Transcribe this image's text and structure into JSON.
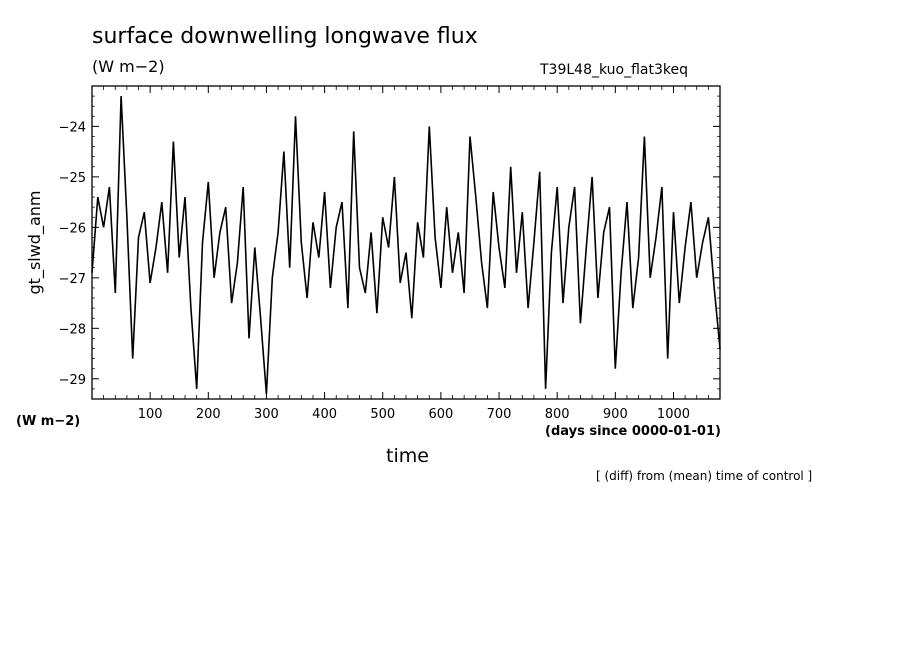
{
  "title": "surface downwelling longwave flux",
  "units_label": "(W m−2)",
  "run_label": "T39L48_kuo_flat3keq",
  "bottom_units_label": "(W m−2)",
  "x_units_label": "(days since 0000-01-01)",
  "xlabel": "time",
  "ylabel": "gt_slwd_anm",
  "note": "[ (diff) from (mean) time of control ]",
  "chart_data": {
    "type": "line",
    "title": "surface downwelling longwave flux",
    "xlabel": "time",
    "ylabel": "gt_slwd_anm",
    "xlim": [
      0,
      1080
    ],
    "ylim": [
      -29.4,
      -23.2
    ],
    "xticks": [
      100,
      200,
      300,
      400,
      500,
      600,
      700,
      800,
      900,
      1000
    ],
    "yticks": [
      -24,
      -25,
      -26,
      -27,
      -28,
      -29
    ],
    "grid": false,
    "series": [
      {
        "x": [
          0,
          10,
          20,
          30,
          40,
          50,
          60,
          70,
          80,
          90,
          100,
          110,
          120,
          130,
          140,
          150,
          160,
          170,
          180,
          190,
          200,
          210,
          220,
          230,
          240,
          250,
          260,
          270,
          280,
          290,
          300,
          310,
          320,
          330,
          340,
          350,
          360,
          370,
          380,
          390,
          400,
          410,
          420,
          430,
          440,
          450,
          460,
          470,
          480,
          490,
          500,
          510,
          520,
          530,
          540,
          550,
          560,
          570,
          580,
          590,
          600,
          610,
          620,
          630,
          640,
          650,
          660,
          670,
          680,
          690,
          700,
          710,
          720,
          730,
          740,
          750,
          760,
          770,
          780,
          790,
          800,
          810,
          820,
          830,
          840,
          850,
          860,
          870,
          880,
          890,
          900,
          910,
          920,
          930,
          940,
          950,
          960,
          970,
          980,
          990,
          1000,
          1010,
          1020,
          1030,
          1040,
          1050,
          1060,
          1070,
          1080
        ],
        "y": [
          -26.9,
          -25.4,
          -26.0,
          -25.2,
          -27.3,
          -23.4,
          -25.8,
          -28.6,
          -26.2,
          -25.7,
          -27.1,
          -26.4,
          -25.5,
          -26.9,
          -24.3,
          -26.6,
          -25.4,
          -27.6,
          -29.2,
          -26.3,
          -25.1,
          -27.0,
          -26.1,
          -25.6,
          -27.5,
          -26.7,
          -25.2,
          -28.2,
          -26.4,
          -27.8,
          -29.3,
          -27.0,
          -26.1,
          -24.5,
          -26.8,
          -23.8,
          -26.3,
          -27.4,
          -25.9,
          -26.6,
          -25.3,
          -27.2,
          -26.0,
          -25.5,
          -27.6,
          -24.1,
          -26.8,
          -27.3,
          -26.1,
          -27.7,
          -25.8,
          -26.4,
          -25.0,
          -27.1,
          -26.5,
          -27.8,
          -25.9,
          -26.6,
          -24.0,
          -26.2,
          -27.2,
          -25.6,
          -26.9,
          -26.1,
          -27.3,
          -24.2,
          -25.4,
          -26.7,
          -27.6,
          -25.3,
          -26.4,
          -27.2,
          -24.8,
          -26.9,
          -25.7,
          -27.6,
          -26.3,
          -24.9,
          -29.2,
          -26.5,
          -25.2,
          -27.5,
          -26.0,
          -25.2,
          -27.9,
          -26.4,
          -25.0,
          -27.4,
          -26.1,
          -25.6,
          -28.8,
          -26.9,
          -25.5,
          -27.6,
          -26.6,
          -24.2,
          -27.0,
          -26.2,
          -25.2,
          -28.6,
          -25.7,
          -27.5,
          -26.4,
          -25.5,
          -27.0,
          -26.3,
          -25.8,
          -27.2,
          -28.4
        ]
      }
    ]
  }
}
